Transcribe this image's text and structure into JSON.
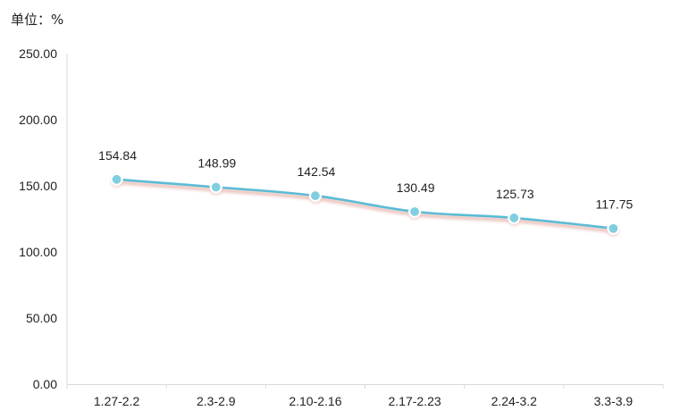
{
  "unit_label": "单位：%",
  "chart_data": {
    "type": "line",
    "title": "",
    "xlabel": "",
    "ylabel": "",
    "categories": [
      "1.27-2.2",
      "2.3-2.9",
      "2.10-2.16",
      "2.17-2.23",
      "2.24-3.2",
      "3.3-3.9"
    ],
    "values": [
      154.84,
      148.99,
      142.54,
      130.49,
      125.73,
      117.75
    ],
    "value_labels": [
      "154.84",
      "148.99",
      "142.54",
      "130.49",
      "125.73",
      "117.75"
    ],
    "y_ticks": [
      "0.00",
      "50.00",
      "100.00",
      "150.00",
      "200.00",
      "250.00"
    ],
    "ylim": [
      0,
      250
    ],
    "grid": false,
    "legend": "none",
    "colors": {
      "line": "#5bbcd6",
      "shadow": "#e7b5ad",
      "marker_fill": "#7fcfe0",
      "marker_stroke": "#ffffff",
      "axis": "#d9d9d9",
      "text": "#222222"
    }
  }
}
